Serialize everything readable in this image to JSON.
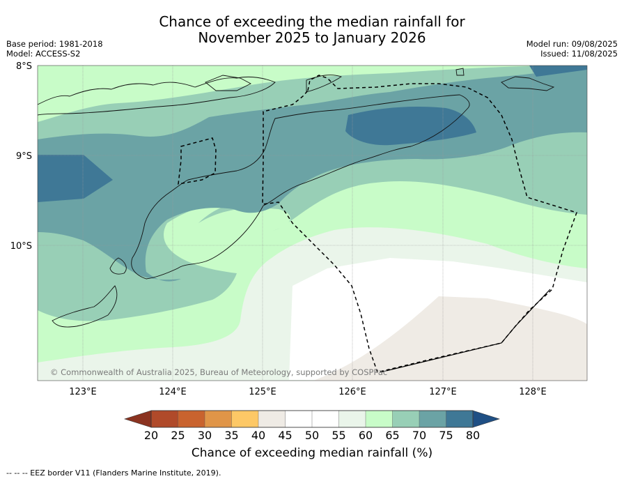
{
  "title": {
    "line1": "Chance of exceeding the median rainfall for",
    "line2": "November 2025 to January 2026"
  },
  "meta": {
    "base_period": "Base period: 1981-2018",
    "model": "Model: ACCESS-S2",
    "model_run": "Model run: 09/08/2025",
    "issued": "Issued: 11/08/2025"
  },
  "map": {
    "lat_labels": [
      "8°S",
      "9°S",
      "10°S"
    ],
    "lon_labels": [
      "123°E",
      "124°E",
      "125°E",
      "126°E",
      "127°E",
      "128°E"
    ],
    "copyright": "© Commonwealth of Australia 2025, Bureau of Meteorology, supported by COSPPac",
    "bands": [
      {
        "range": "20-25",
        "color": "#b04a2a"
      },
      {
        "range": "25-30",
        "color": "#c9632e"
      },
      {
        "range": "30-35",
        "color": "#e09548"
      },
      {
        "range": "35-40",
        "color": "#fdc866"
      },
      {
        "range": "40-45",
        "color": "#efebe5"
      },
      {
        "range": "45-50",
        "color": "#ffffff"
      },
      {
        "range": "50-55",
        "color": "#ffffff"
      },
      {
        "range": "55-60",
        "color": "#eaf5ea"
      },
      {
        "range": "60-65",
        "color": "#c8fcc8"
      },
      {
        "range": "65-70",
        "color": "#98cfb6"
      },
      {
        "range": "70-75",
        "color": "#6ba3a5"
      },
      {
        "range": "75-80",
        "color": "#3f7896"
      }
    ]
  },
  "colorbar": {
    "ticks": [
      "20",
      "25",
      "30",
      "35",
      "40",
      "45",
      "50",
      "55",
      "60",
      "65",
      "70",
      "75",
      "80"
    ],
    "colors": [
      "#b04a2a",
      "#c9632e",
      "#e09548",
      "#fdc866",
      "#efebe5",
      "#ffffff",
      "#ffffff",
      "#eaf5ea",
      "#c8fcc8",
      "#98cfb6",
      "#6ba3a5",
      "#3f7896"
    ],
    "under_color": "#8b3320",
    "over_color": "#1f4f84",
    "label": "Chance of exceeding median rainfall (%)"
  },
  "footnote": "--  --  -- EEZ border V11 (Flanders Marine Institute, 2019)."
}
